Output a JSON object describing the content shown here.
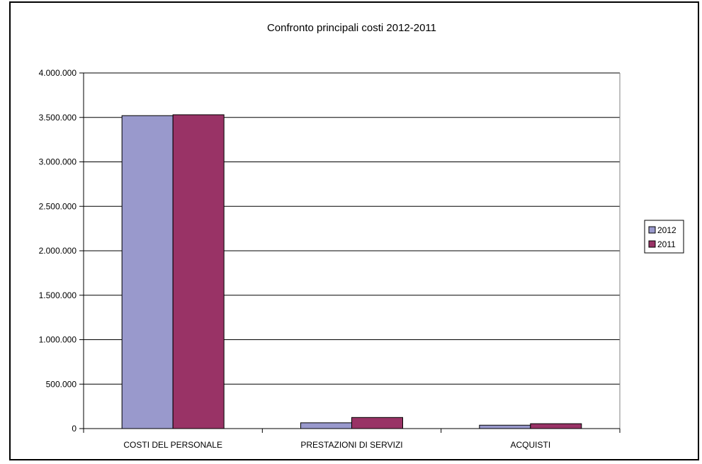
{
  "chart_data": {
    "type": "bar",
    "title": "Confronto principali costi 2012-2011",
    "xlabel": "",
    "ylabel": "",
    "categories": [
      "COSTI DEL PERSONALE",
      "PRESTAZIONI DI SERVIZI",
      "ACQUISTI"
    ],
    "series": [
      {
        "name": "2012",
        "color": "#9999cc",
        "values": [
          3520000,
          65000,
          38000
        ]
      },
      {
        "name": "2011",
        "color": "#993366",
        "values": [
          3530000,
          125000,
          55000
        ]
      }
    ],
    "ylim": [
      0,
      4000000
    ],
    "yticks": [
      0,
      500000,
      1000000,
      1500000,
      2000000,
      2500000,
      3000000,
      3500000,
      4000000
    ],
    "ytick_labels": [
      "0",
      "500.000",
      "1.000.000",
      "1.500.000",
      "2.000.000",
      "2.500.000",
      "3.000.000",
      "3.500.000",
      "4.000.000"
    ],
    "grid": true,
    "legend_position": "right"
  }
}
